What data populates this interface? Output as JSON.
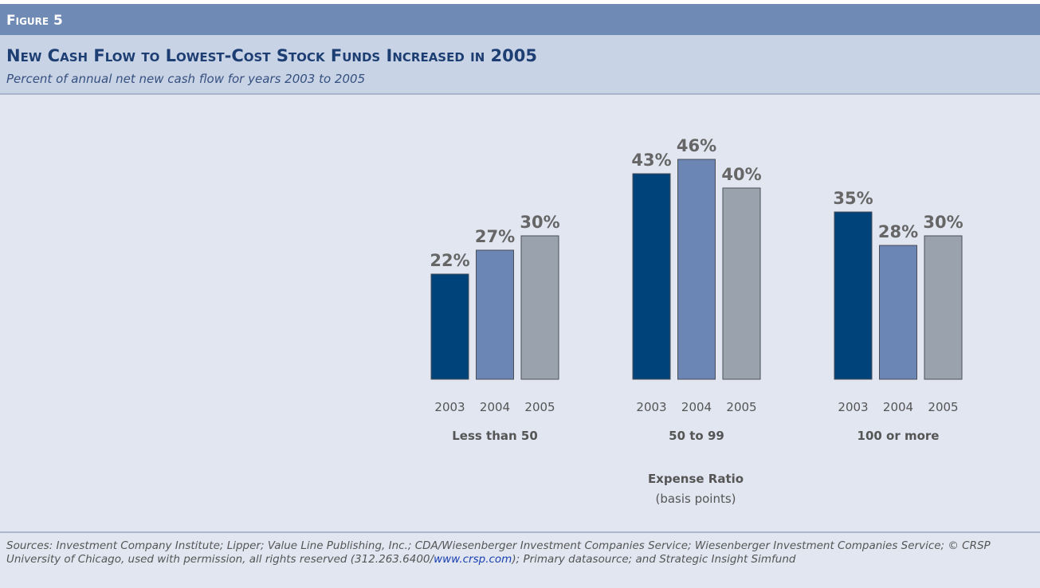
{
  "figure_label": "Figure 5",
  "chart_data": {
    "type": "bar",
    "title": "New Cash Flow to Lowest-Cost Stock Funds Increased in 2005",
    "subtitle": "Percent of annual net new cash flow for years 2003 to 2005",
    "categories": [
      "Less than 50",
      "50 to 99",
      "100 or more"
    ],
    "series": [
      {
        "name": "2003",
        "color": "#00427a",
        "values": [
          22,
          43,
          35
        ],
        "value_labels": [
          "22%",
          "43%",
          "35%"
        ]
      },
      {
        "name": "2004",
        "color": "#6b86b4",
        "values": [
          27,
          46,
          28
        ],
        "value_labels": [
          "27%",
          "46%",
          "28%"
        ]
      },
      {
        "name": "2005",
        "color": "#9aa3ad",
        "values": [
          30,
          40,
          30
        ],
        "value_labels": [
          "30%",
          "40%",
          "30%"
        ]
      }
    ],
    "xlabel": "Expense Ratio",
    "xlabel_unit": "(basis points)"
  },
  "source": [
    "Sources: Investment Company Institute; Lipper; Value Line Publishing, Inc.; CDA/Wiesenberger Investment Companies Service; Wiesenberger Investment Companies Service; © CRSP University of Chicago, used with permission, all rights reserved (312.263.6400/",
    "www.crsp.com",
    "); Primary datasource; and Strategic Insight Simfund"
  ]
}
